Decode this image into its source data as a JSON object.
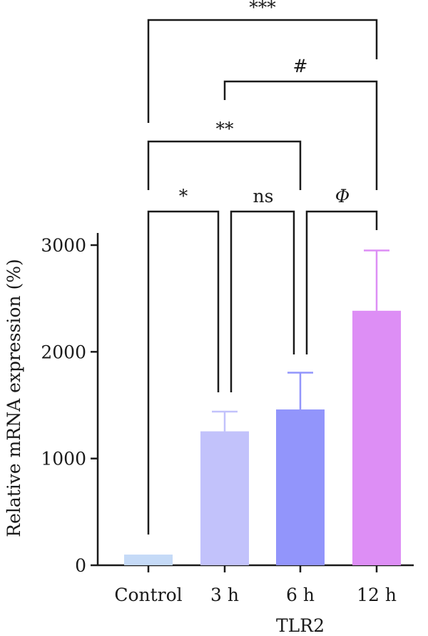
{
  "chart_data": {
    "type": "bar",
    "title": "",
    "xlabel": "TLR2",
    "ylabel": "Relative mRNA expression (%)",
    "ylim": [
      0,
      3000
    ],
    "yticks": [
      0,
      1000,
      2000,
      3000
    ],
    "yticks_labels": [
      "0",
      "1000",
      "2000",
      "3000"
    ],
    "categories": [
      "Control",
      "3 h",
      "6 h",
      "12 h"
    ],
    "values": [
      100,
      1255,
      1460,
      2385
    ],
    "errors": [
      0,
      185,
      345,
      565
    ],
    "bar_colors": [
      "#c5daf7",
      "#c2c2fb",
      "#9295fb",
      "#dd8ef5"
    ],
    "significance": [
      {
        "from": 0,
        "to": 1,
        "label": "*"
      },
      {
        "from": 1,
        "to": 2,
        "label": "ns"
      },
      {
        "from": 2,
        "to": 3,
        "label": "Φ"
      },
      {
        "from": 0,
        "to": 2,
        "label": "**"
      },
      {
        "from": 1,
        "to": 3,
        "label": "#"
      },
      {
        "from": 0,
        "to": 3,
        "label": "***"
      }
    ]
  }
}
